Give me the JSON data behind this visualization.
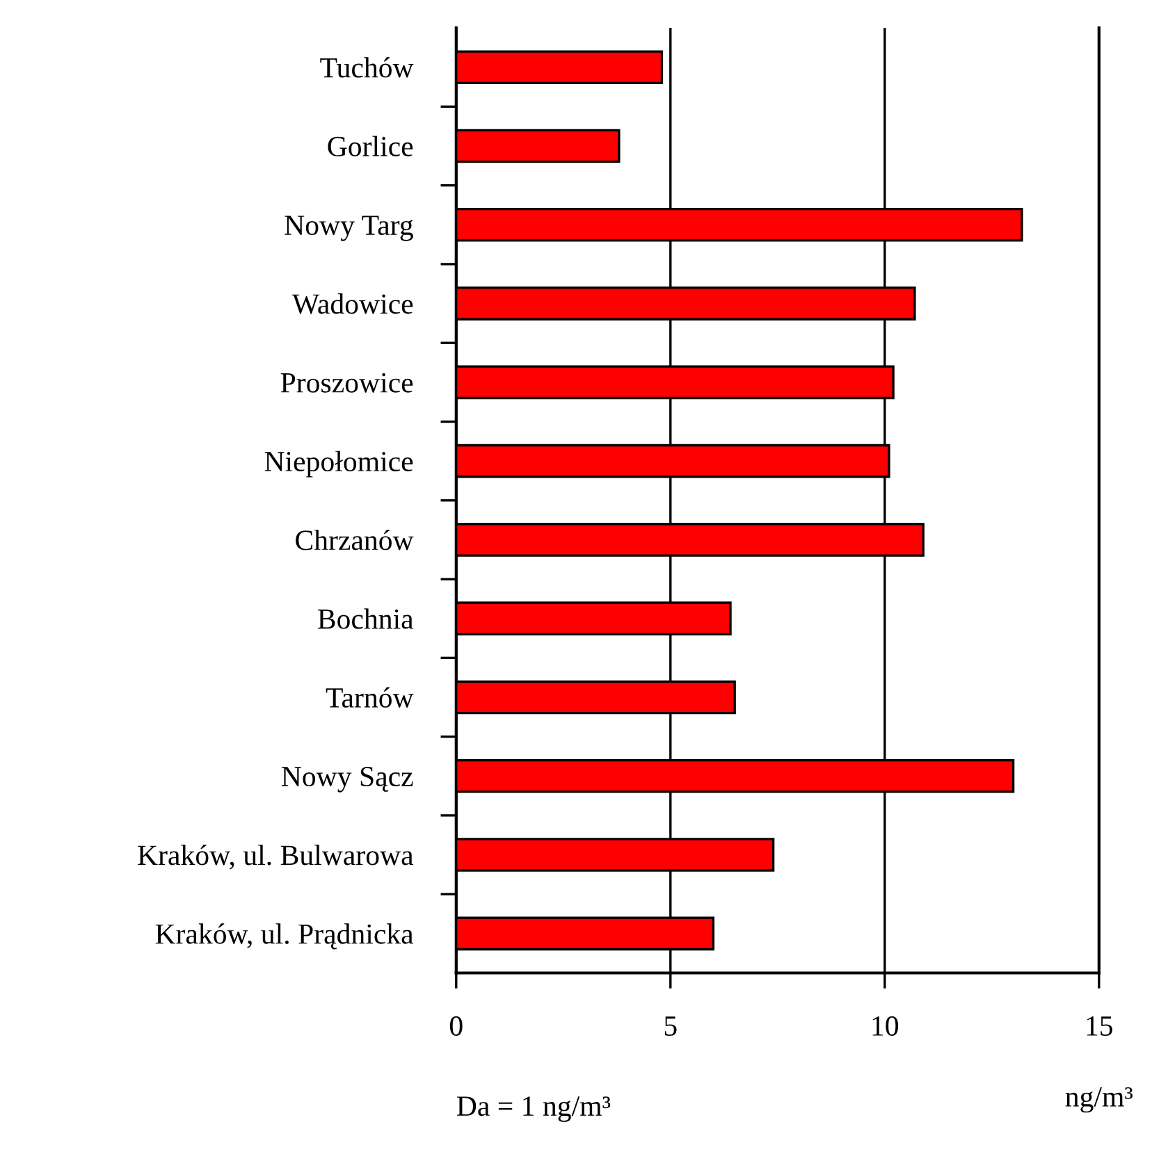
{
  "chart_data": {
    "type": "bar",
    "orientation": "horizontal",
    "xlabel": "ng/m³",
    "categories": [
      "Tuchów",
      "Gorlice",
      "Nowy Targ",
      "Wadowice",
      "Proszowice",
      "Niepołomice",
      "Chrzanów",
      "Bochnia",
      "Tarnów",
      "Nowy Sącz",
      "Kraków, ul. Bulwarowa",
      "Kraków, ul. Prądnicka"
    ],
    "values": [
      4.8,
      3.8,
      13.2,
      10.7,
      10.2,
      10.1,
      10.9,
      6.4,
      6.5,
      13.0,
      7.4,
      6.0
    ],
    "color": "#ff0000",
    "xlim": [
      0,
      15
    ],
    "xticks": [
      0,
      5,
      10,
      15
    ],
    "grid": "x",
    "legend": false,
    "annotations": [
      "Da = 1 ng/m³"
    ]
  }
}
